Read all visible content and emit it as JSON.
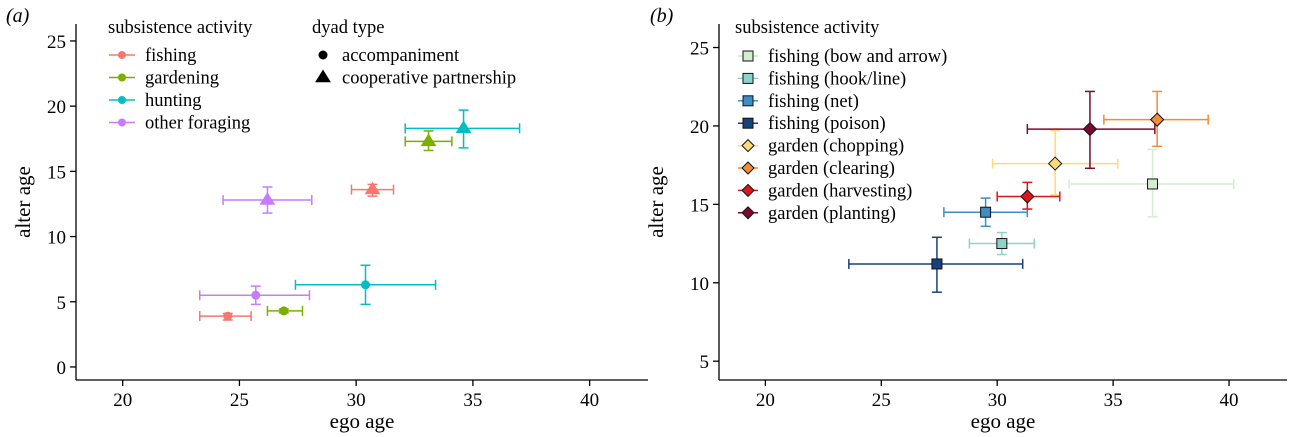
{
  "chart_data": [
    {
      "type": "scatter",
      "panel_label": "(a)",
      "xlabel": "ego age",
      "ylabel": "alter age",
      "xlim": [
        18,
        42.5
      ],
      "ylim": [
        -1,
        26.3
      ],
      "xticks": [
        20,
        25,
        30,
        35,
        40
      ],
      "yticks": [
        0,
        5,
        10,
        15,
        20,
        25
      ],
      "grid": false,
      "legend_activity_title": "subsistence activity",
      "legend_dyad_title": "dyad type",
      "activities": [
        {
          "name": "fishing",
          "color": "#F8766D"
        },
        {
          "name": "gardening",
          "color": "#7CAE00"
        },
        {
          "name": "hunting",
          "color": "#00BFC4"
        },
        {
          "name": "other foraging",
          "color": "#C77CFF"
        }
      ],
      "dyad_types": [
        {
          "name": "accompaniment",
          "marker": "circle"
        },
        {
          "name": "cooperative partnership",
          "marker": "triangle"
        }
      ],
      "points": [
        {
          "activity": "fishing",
          "dyad": "accompaniment",
          "x": 24.5,
          "xlo": 23.3,
          "xhi": 25.5,
          "y": 3.9,
          "ylo": 3.6,
          "yhi": 4.1
        },
        {
          "activity": "gardening",
          "dyad": "accompaniment",
          "x": 26.9,
          "xlo": 26.2,
          "xhi": 27.7,
          "y": 4.3,
          "ylo": 4.15,
          "yhi": 4.45
        },
        {
          "activity": "hunting",
          "dyad": "accompaniment",
          "x": 30.4,
          "xlo": 27.4,
          "xhi": 33.4,
          "y": 6.3,
          "ylo": 4.8,
          "yhi": 7.8
        },
        {
          "activity": "other foraging",
          "dyad": "accompaniment",
          "x": 25.7,
          "xlo": 23.3,
          "xhi": 28.0,
          "y": 5.5,
          "ylo": 4.8,
          "yhi": 6.2
        },
        {
          "activity": "fishing",
          "dyad": "cooperative partnership",
          "x": 30.7,
          "xlo": 29.8,
          "xhi": 31.6,
          "y": 13.6,
          "ylo": 13.1,
          "yhi": 14.0
        },
        {
          "activity": "gardening",
          "dyad": "cooperative partnership",
          "x": 33.1,
          "xlo": 32.1,
          "xhi": 34.1,
          "y": 17.3,
          "ylo": 16.6,
          "yhi": 18.1
        },
        {
          "activity": "hunting",
          "dyad": "cooperative partnership",
          "x": 34.6,
          "xlo": 32.1,
          "xhi": 37.0,
          "y": 18.3,
          "ylo": 16.8,
          "yhi": 19.7
        },
        {
          "activity": "other foraging",
          "dyad": "cooperative partnership",
          "x": 26.2,
          "xlo": 24.3,
          "xhi": 28.1,
          "y": 12.8,
          "ylo": 11.8,
          "yhi": 13.8
        }
      ]
    },
    {
      "type": "scatter",
      "panel_label": "(b)",
      "xlabel": "ego age",
      "ylabel": "alter age",
      "xlim": [
        18,
        42.5
      ],
      "ylim": [
        3.8,
        26.5
      ],
      "xticks": [
        20,
        25,
        30,
        35,
        40
      ],
      "yticks": [
        5,
        10,
        15,
        20,
        25
      ],
      "grid": false,
      "legend_title": "subsistence activity",
      "series": [
        {
          "name": "fishing (bow and arrow)",
          "color": "#D4EDCF",
          "marker": "square",
          "x": 36.7,
          "xlo": 33.1,
          "xhi": 40.2,
          "y": 16.3,
          "ylo": 14.2,
          "yhi": 18.5
        },
        {
          "name": "fishing (hook/line)",
          "color": "#8DD3C7",
          "marker": "square",
          "x": 30.2,
          "xlo": 28.8,
          "xhi": 31.6,
          "y": 12.5,
          "ylo": 11.8,
          "yhi": 13.2
        },
        {
          "name": "fishing (net)",
          "color": "#3E8DC4",
          "marker": "square",
          "x": 29.5,
          "xlo": 27.7,
          "xhi": 31.3,
          "y": 14.5,
          "ylo": 13.6,
          "yhi": 15.4
        },
        {
          "name": "fishing (poison)",
          "color": "#17427A",
          "marker": "square",
          "x": 27.4,
          "xlo": 23.6,
          "xhi": 31.1,
          "y": 11.2,
          "ylo": 9.4,
          "yhi": 12.9
        },
        {
          "name": "garden (chopping)",
          "color": "#FDD978",
          "marker": "diamond",
          "x": 32.5,
          "xlo": 29.8,
          "xhi": 35.2,
          "y": 17.6,
          "ylo": 15.6,
          "yhi": 19.7
        },
        {
          "name": "garden (clearing)",
          "color": "#F58C33",
          "marker": "diamond",
          "x": 36.9,
          "xlo": 34.6,
          "xhi": 39.1,
          "y": 20.4,
          "ylo": 18.7,
          "yhi": 22.2
        },
        {
          "name": "garden (harvesting)",
          "color": "#D7191C",
          "marker": "diamond",
          "x": 31.3,
          "xlo": 30.0,
          "xhi": 32.7,
          "y": 15.5,
          "ylo": 14.7,
          "yhi": 16.4
        },
        {
          "name": "garden (planting)",
          "color": "#7A0B2E",
          "marker": "diamond",
          "x": 34.0,
          "xlo": 31.3,
          "xhi": 36.8,
          "y": 19.8,
          "ylo": 17.3,
          "yhi": 22.2
        }
      ]
    }
  ]
}
